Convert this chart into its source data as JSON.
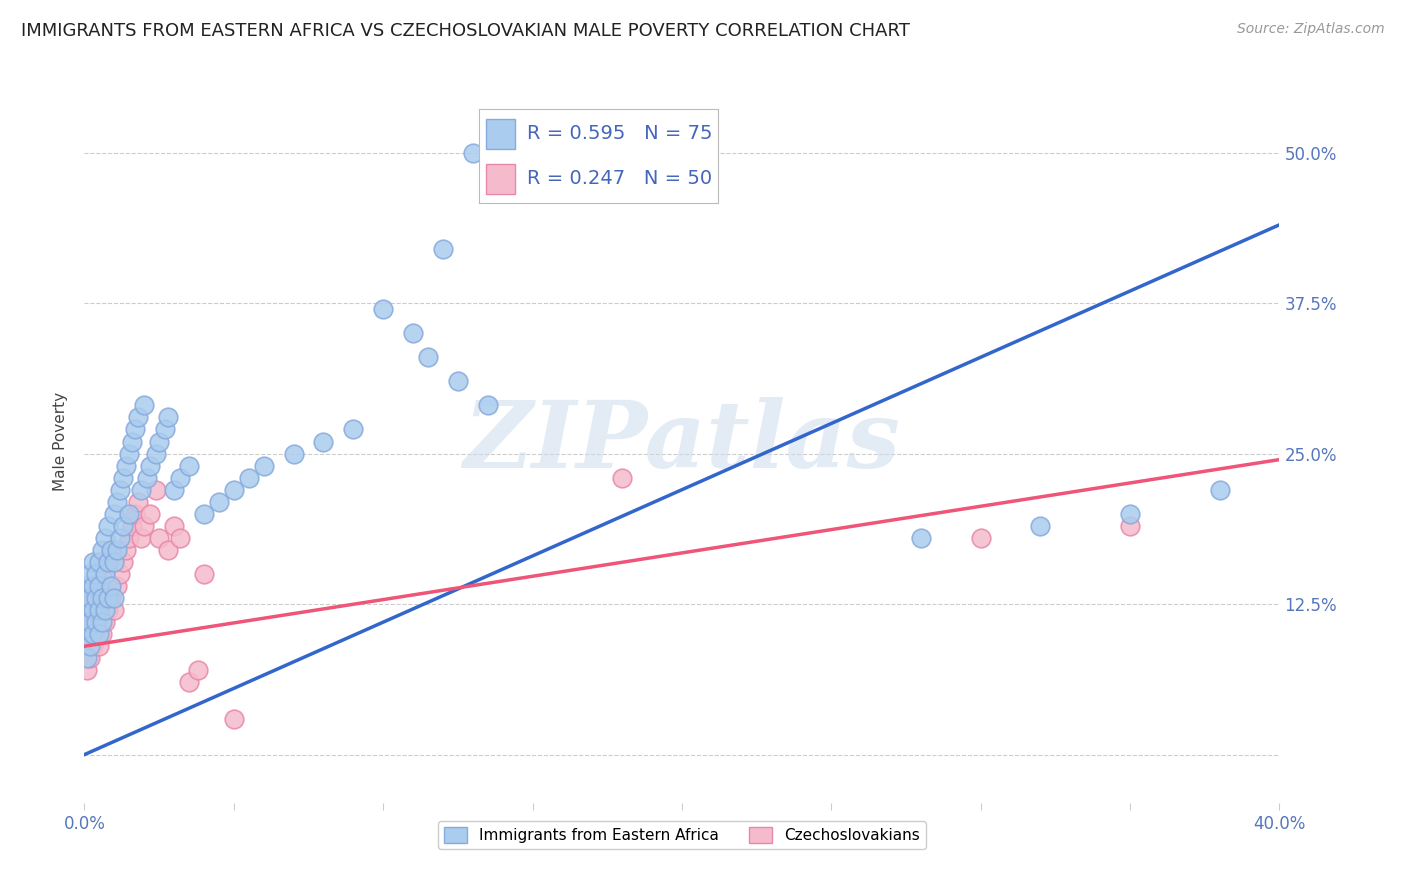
{
  "title": "IMMIGRANTS FROM EASTERN AFRICA VS CZECHOSLOVAKIAN MALE POVERTY CORRELATION CHART",
  "source": "Source: ZipAtlas.com",
  "ylabel": "Male Poverty",
  "legend_label_blue": "Immigrants from Eastern Africa",
  "legend_label_pink": "Czechoslovakians",
  "watermark": "ZIPatlas",
  "blue_R": 0.595,
  "blue_N": 75,
  "pink_R": 0.247,
  "pink_N": 50,
  "blue_color": "#aaccee",
  "blue_edge_color": "#88aadd",
  "pink_color": "#f5bbcc",
  "pink_edge_color": "#e888aa",
  "blue_line_color": "#3366cc",
  "pink_line_color": "#ee5577",
  "xmin": 0.0,
  "xmax": 0.4,
  "ymin": -0.04,
  "ymax": 0.56,
  "title_fontsize": 13,
  "source_fontsize": 10,
  "axis_label_fontsize": 11,
  "tick_fontsize": 12,
  "legend_fontsize": 14,
  "blue_line_x0": 0.0,
  "blue_line_y0": 0.0,
  "blue_line_x1": 0.4,
  "blue_line_y1": 0.44,
  "pink_line_x0": 0.0,
  "pink_line_y0": 0.09,
  "pink_line_x1": 0.4,
  "pink_line_y1": 0.245,
  "blue_x": [
    0.001,
    0.001,
    0.001,
    0.001,
    0.002,
    0.002,
    0.002,
    0.002,
    0.003,
    0.003,
    0.003,
    0.003,
    0.004,
    0.004,
    0.004,
    0.005,
    0.005,
    0.005,
    0.005,
    0.006,
    0.006,
    0.006,
    0.007,
    0.007,
    0.007,
    0.008,
    0.008,
    0.008,
    0.009,
    0.009,
    0.01,
    0.01,
    0.01,
    0.011,
    0.011,
    0.012,
    0.012,
    0.013,
    0.013,
    0.014,
    0.015,
    0.015,
    0.016,
    0.017,
    0.018,
    0.019,
    0.02,
    0.021,
    0.022,
    0.024,
    0.025,
    0.027,
    0.028,
    0.03,
    0.032,
    0.035,
    0.04,
    0.045,
    0.05,
    0.055,
    0.06,
    0.07,
    0.08,
    0.09,
    0.1,
    0.11,
    0.115,
    0.12,
    0.125,
    0.13,
    0.135,
    0.28,
    0.32,
    0.35,
    0.38
  ],
  "blue_y": [
    0.12,
    0.14,
    0.1,
    0.08,
    0.13,
    0.15,
    0.11,
    0.09,
    0.14,
    0.16,
    0.1,
    0.12,
    0.15,
    0.13,
    0.11,
    0.16,
    0.14,
    0.12,
    0.1,
    0.17,
    0.13,
    0.11,
    0.18,
    0.15,
    0.12,
    0.19,
    0.16,
    0.13,
    0.17,
    0.14,
    0.2,
    0.16,
    0.13,
    0.21,
    0.17,
    0.22,
    0.18,
    0.23,
    0.19,
    0.24,
    0.25,
    0.2,
    0.26,
    0.27,
    0.28,
    0.22,
    0.29,
    0.23,
    0.24,
    0.25,
    0.26,
    0.27,
    0.28,
    0.22,
    0.23,
    0.24,
    0.2,
    0.21,
    0.22,
    0.23,
    0.24,
    0.25,
    0.26,
    0.27,
    0.37,
    0.35,
    0.33,
    0.42,
    0.31,
    0.5,
    0.29,
    0.18,
    0.19,
    0.2,
    0.22
  ],
  "pink_x": [
    0.001,
    0.001,
    0.001,
    0.001,
    0.002,
    0.002,
    0.002,
    0.003,
    0.003,
    0.003,
    0.004,
    0.004,
    0.004,
    0.005,
    0.005,
    0.005,
    0.006,
    0.006,
    0.006,
    0.007,
    0.007,
    0.008,
    0.008,
    0.009,
    0.009,
    0.01,
    0.01,
    0.011,
    0.012,
    0.013,
    0.014,
    0.015,
    0.016,
    0.017,
    0.018,
    0.019,
    0.02,
    0.022,
    0.024,
    0.025,
    0.028,
    0.03,
    0.032,
    0.035,
    0.038,
    0.04,
    0.05,
    0.18,
    0.3,
    0.35
  ],
  "pink_y": [
    0.09,
    0.11,
    0.07,
    0.13,
    0.1,
    0.12,
    0.08,
    0.11,
    0.13,
    0.09,
    0.12,
    0.14,
    0.1,
    0.13,
    0.11,
    0.09,
    0.14,
    0.12,
    0.1,
    0.15,
    0.11,
    0.16,
    0.12,
    0.17,
    0.13,
    0.16,
    0.12,
    0.14,
    0.15,
    0.16,
    0.17,
    0.18,
    0.19,
    0.2,
    0.21,
    0.18,
    0.19,
    0.2,
    0.22,
    0.18,
    0.17,
    0.19,
    0.18,
    0.06,
    0.07,
    0.15,
    0.03,
    0.23,
    0.18,
    0.19
  ]
}
